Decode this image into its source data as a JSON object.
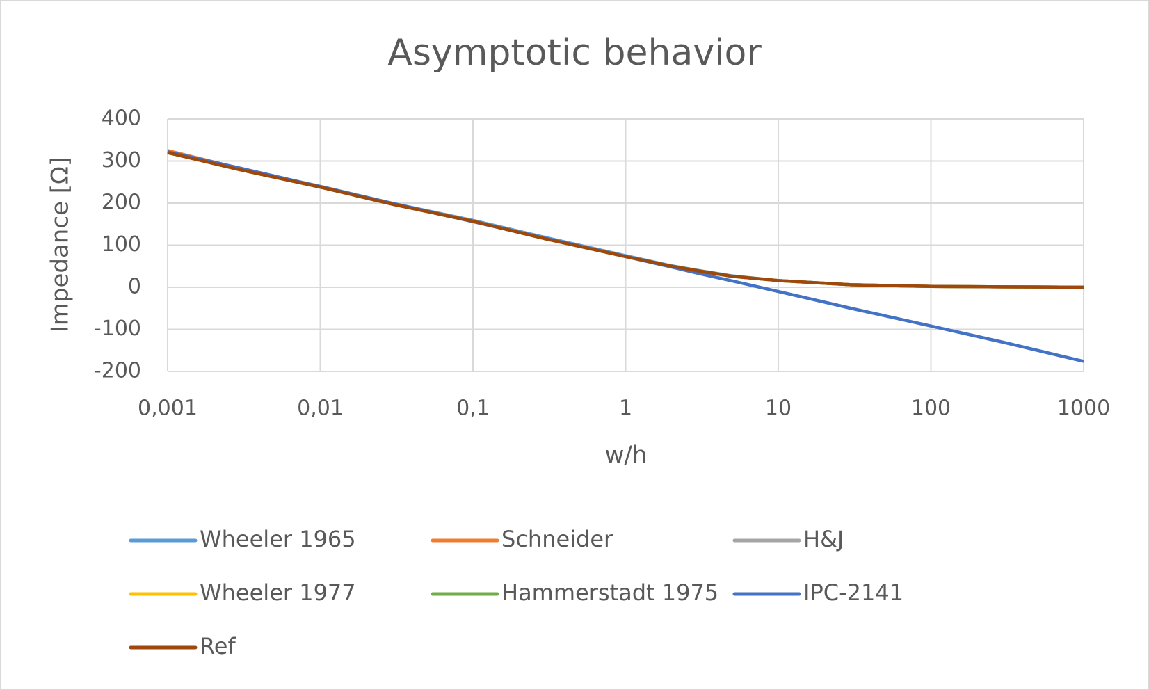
{
  "chart_data": {
    "type": "line",
    "title": "Asymptotic behavior",
    "x_label": "w/h",
    "y_label": "Impedance [Ω]",
    "x": [
      0.001,
      0.003,
      0.01,
      0.03,
      0.1,
      0.3,
      1,
      2,
      3,
      5,
      10,
      30,
      100,
      300,
      1000
    ],
    "series": [
      {
        "name": "Wheeler 1965",
        "color": "#5b9bd5",
        "values": [
          321,
          281,
          240,
          199,
          159,
          118,
          75,
          51,
          40,
          27,
          16,
          6,
          2,
          1,
          0.3
        ]
      },
      {
        "name": "Schneider",
        "color": "#ed7d31",
        "values": [
          325,
          282,
          238,
          197,
          157,
          115,
          73,
          50,
          39,
          26,
          16,
          6,
          2,
          1,
          0.3
        ]
      },
      {
        "name": "H&J",
        "color": "#a5a5a5",
        "values": [
          320,
          279,
          238,
          197,
          157,
          115,
          73,
          50,
          39,
          26,
          16,
          6,
          2,
          1,
          0.3
        ]
      },
      {
        "name": "Wheeler 1977",
        "color": "#ffc000",
        "values": [
          320,
          279,
          238,
          197,
          157,
          115,
          73,
          50,
          39,
          26,
          16,
          6,
          2,
          1,
          0.3
        ]
      },
      {
        "name": "Hammerstadt 1975",
        "color": "#70ad47",
        "values": [
          320,
          279,
          238,
          197,
          157,
          115,
          73,
          50,
          39,
          26,
          16,
          6,
          2,
          1,
          0.3
        ]
      },
      {
        "name": "IPC-2141",
        "color": "#4472c4",
        "values": [
          322,
          283,
          239,
          199,
          156,
          116,
          73,
          48,
          33,
          15,
          -10,
          -50,
          -92,
          -131,
          -176
        ]
      },
      {
        "name": "Ref",
        "color": "#9e480e",
        "values": [
          320,
          279,
          238,
          197,
          157,
          115,
          73,
          50,
          39,
          26,
          16,
          6,
          2,
          1,
          0.3
        ]
      }
    ],
    "xlim": [
      0.001,
      1000
    ],
    "xlog": true,
    "xticks": [
      {
        "value": 0.001,
        "label": "0,001"
      },
      {
        "value": 0.01,
        "label": "0,01"
      },
      {
        "value": 0.1,
        "label": "0,1"
      },
      1,
      10,
      100,
      1000
    ],
    "ylim": [
      -200,
      400
    ],
    "yticks": [
      -200,
      -100,
      0,
      100,
      200,
      300,
      400
    ],
    "grid": true,
    "legend": "bottom"
  }
}
